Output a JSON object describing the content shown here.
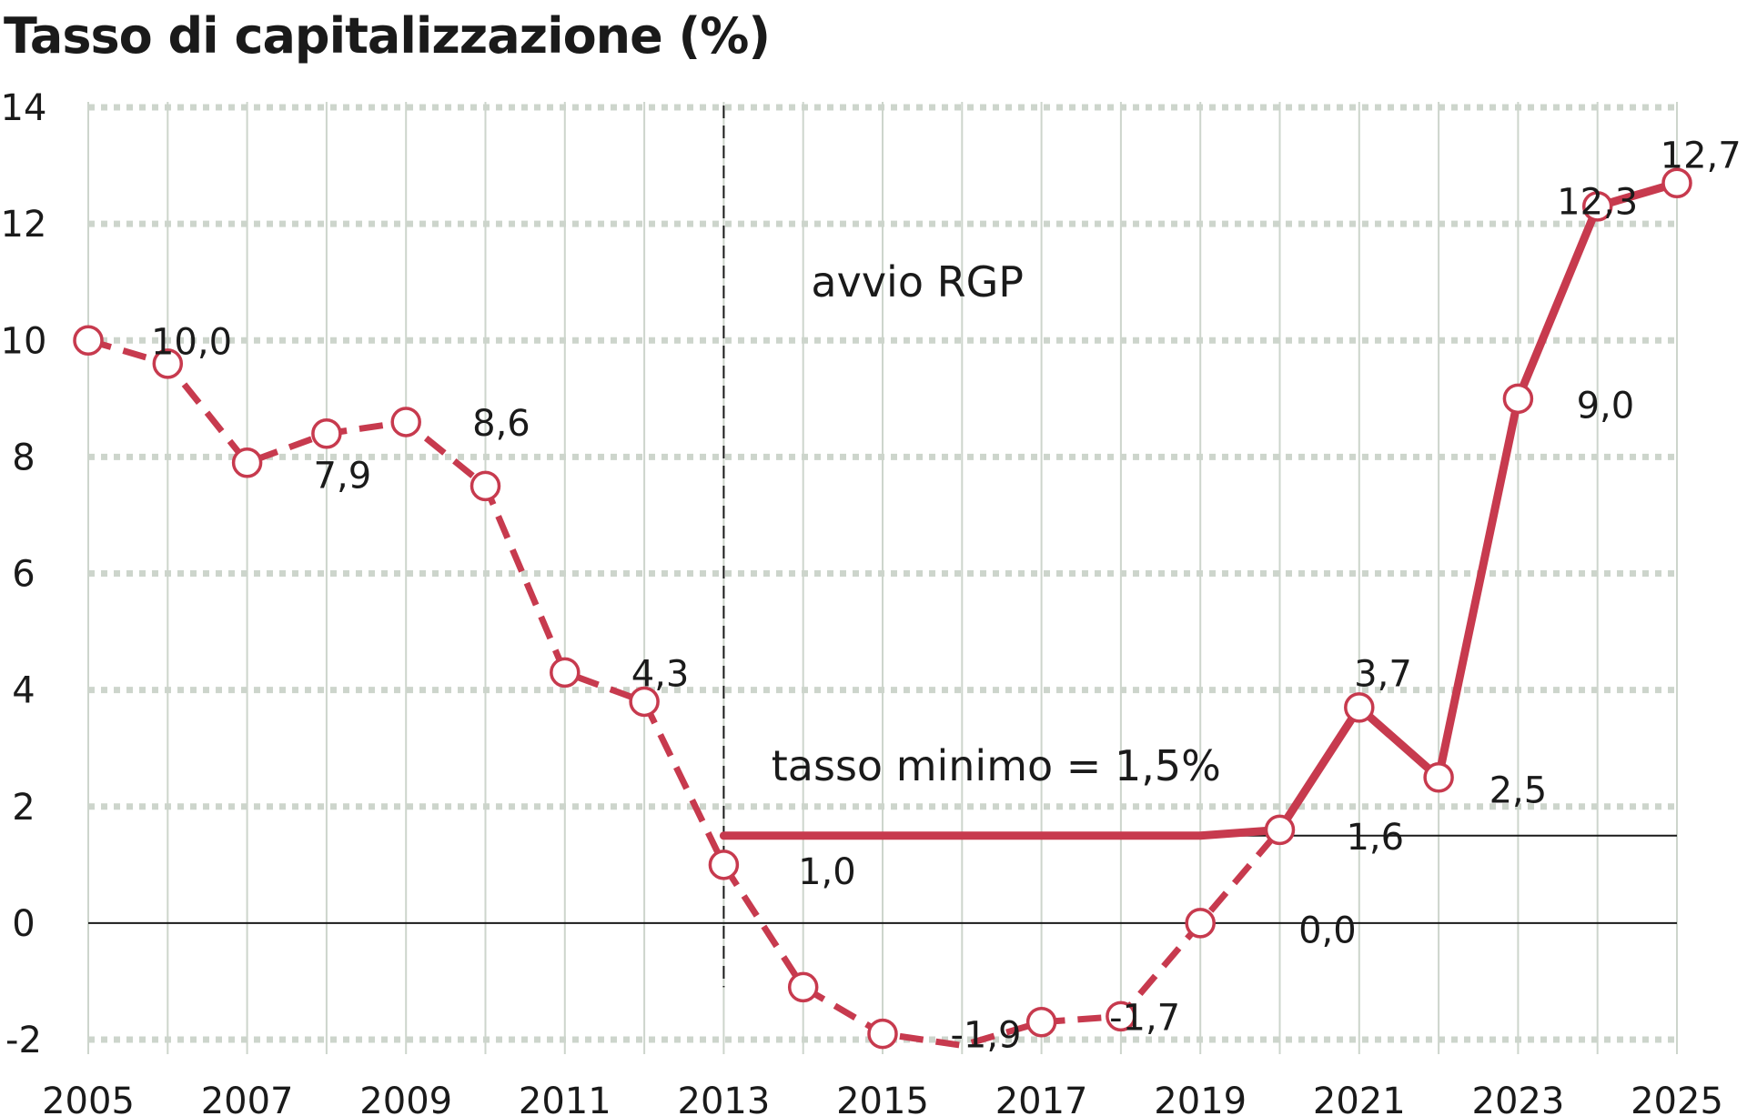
{
  "chart_data": {
    "type": "line",
    "title": "Tasso di capitalizzazione (%)",
    "xlabel": "",
    "ylabel": "",
    "xlim": [
      2005,
      2025
    ],
    "ylim": [
      -2,
      14
    ],
    "x_ticks": [
      "2005",
      "2007",
      "2009",
      "2011",
      "2013",
      "2015",
      "2017",
      "2019",
      "2021",
      "2023",
      "2025"
    ],
    "y_ticks": [
      "14",
      "12",
      "10",
      "8",
      "6",
      "4",
      "2",
      "0",
      "-2"
    ],
    "grid": true,
    "legend": "none",
    "series": [
      {
        "style": "dashed-with-markers",
        "x": [
          2005,
          2006,
          2007,
          2008,
          2009,
          2010,
          2011,
          2012,
          2013,
          2014,
          2015,
          2016,
          2017,
          2018,
          2019,
          2020
        ],
        "y": [
          10.0,
          9.6,
          7.9,
          8.4,
          8.6,
          7.5,
          4.3,
          3.8,
          1.0,
          -1.1,
          -1.9,
          -2.1,
          -1.7,
          -1.6,
          0.0,
          1.6
        ]
      },
      {
        "style": "solid",
        "x": [
          2013,
          2019,
          2020,
          2021,
          2022,
          2023,
          2024,
          2025
        ],
        "y": [
          1.5,
          1.5,
          1.6,
          3.7,
          2.5,
          9.0,
          12.3,
          12.7
        ]
      },
      {
        "style": "markers",
        "x": [
          2021,
          2022,
          2023,
          2024,
          2025
        ],
        "y": [
          3.7,
          2.5,
          9.0,
          12.3,
          12.7
        ]
      }
    ],
    "reference_lines": [
      {
        "orientation": "horizontal",
        "y": 0
      },
      {
        "orientation": "horizontal",
        "y": 1.5,
        "from_x": 2013
      },
      {
        "orientation": "vertical",
        "x": 2013,
        "style": "dashed"
      }
    ],
    "data_labels": [
      {
        "text": "10,0",
        "x": 2006.3,
        "y": 10.0
      },
      {
        "text": "7,9",
        "x": 2008.2,
        "y": 7.7
      },
      {
        "text": "8,6",
        "x": 2010.2,
        "y": 8.6
      },
      {
        "text": "4,3",
        "x": 2012.2,
        "y": 4.3
      },
      {
        "text": "1,0",
        "x": 2014.3,
        "y": 0.9
      },
      {
        "text": "-1,9",
        "x": 2016.3,
        "y": -1.9
      },
      {
        "text": "-1,7",
        "x": 2018.3,
        "y": -1.6
      },
      {
        "text": "0,0",
        "x": 2020.6,
        "y": -0.1
      },
      {
        "text": "1,6",
        "x": 2021.2,
        "y": 1.5
      },
      {
        "text": "3,7",
        "x": 2021.3,
        "y": 4.3
      },
      {
        "text": "2,5",
        "x": 2023.0,
        "y": 2.3
      },
      {
        "text": "9,0",
        "x": 2024.1,
        "y": 8.9
      },
      {
        "text": "12,3",
        "x": 2024.0,
        "y": 12.4
      },
      {
        "text": "12,7",
        "x": 2025.3,
        "y": 13.2
      }
    ],
    "annotations": [
      {
        "text": "avvio RGP",
        "x": 2014.1,
        "y": 11.0
      },
      {
        "text": "tasso minimo = 1,5%",
        "x": 2013.6,
        "y": 2.7
      }
    ],
    "colors": {
      "series": "#c73a4e",
      "marker_fill": "#ffffff",
      "grid": "#cdd5cc",
      "axis": "#1a1a1a",
      "text": "#1a1a1a"
    }
  }
}
